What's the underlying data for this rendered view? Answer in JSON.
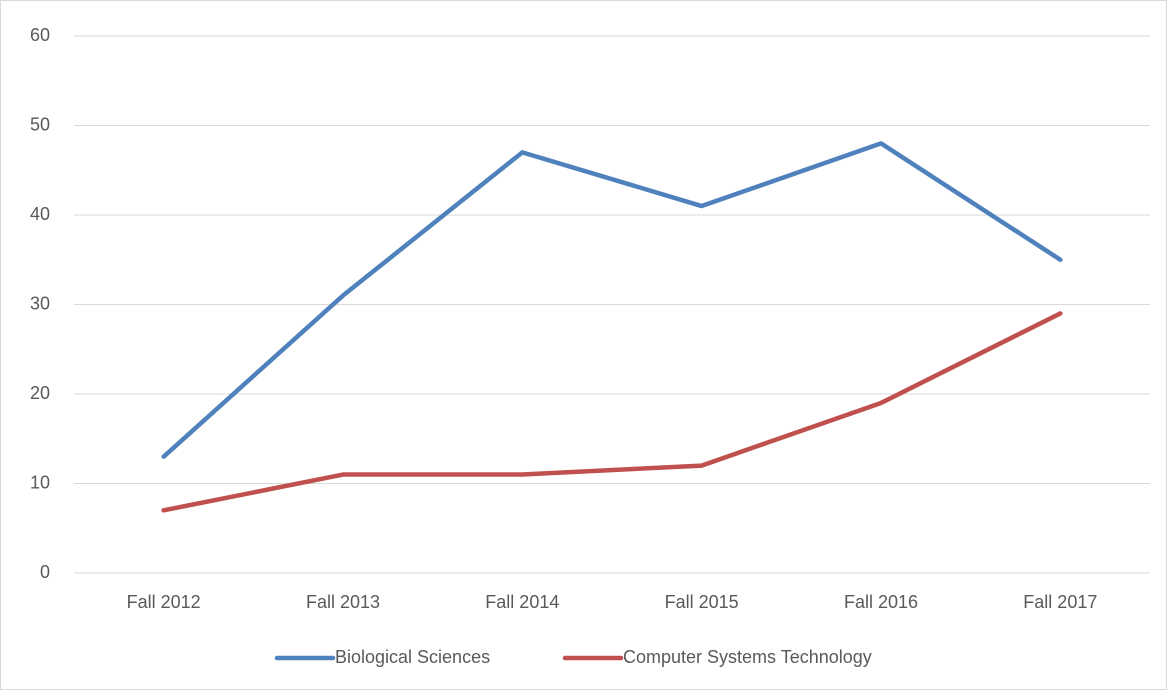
{
  "chart_data": {
    "type": "line",
    "categories": [
      "Fall 2012",
      "Fall 2013",
      "Fall 2014",
      "Fall 2015",
      "Fall 2016",
      "Fall 2017"
    ],
    "series": [
      {
        "name": "Biological Sciences",
        "color": "#4f81bd",
        "values": [
          13,
          31,
          47,
          41,
          48,
          35
        ]
      },
      {
        "name": "Computer Systems Technology",
        "color": "#c0504d",
        "values": [
          7,
          11,
          11,
          12,
          19,
          29
        ]
      }
    ],
    "ylim": [
      0,
      60
    ],
    "yticks": [
      0,
      10,
      20,
      30,
      40,
      50,
      60
    ],
    "grid": true,
    "legend": "bottom"
  }
}
